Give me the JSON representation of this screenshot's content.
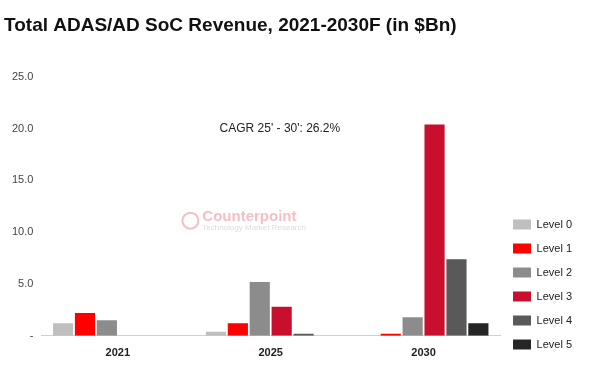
{
  "chart_data": {
    "type": "bar",
    "title": "Total ADAS/AD SoC Revenue, 2021-2030F (in $Bn)",
    "annotation": "CAGR 25' - 30': 26.2%",
    "watermark": [
      "Counterpoint",
      "Technology Market Research"
    ],
    "categories": [
      "2021",
      "2025",
      "2030"
    ],
    "series": [
      {
        "name": "Level 0",
        "color": "#bfbfbf",
        "values": [
          1.2,
          0.4,
          0
        ]
      },
      {
        "name": "Level 1",
        "color": "#ff0000",
        "values": [
          2.2,
          1.2,
          0.2
        ]
      },
      {
        "name": "Level 2",
        "color": "#8c8c8c",
        "values": [
          1.5,
          5.2,
          1.8
        ]
      },
      {
        "name": "Level 3",
        "color": "#c8102e",
        "values": [
          0,
          2.8,
          20.4
        ]
      },
      {
        "name": "Level 4",
        "color": "#595959",
        "values": [
          0,
          0.2,
          7.4
        ]
      },
      {
        "name": "Level 5",
        "color": "#262626",
        "values": [
          0,
          0,
          1.2
        ]
      }
    ],
    "ylim": [
      0,
      25
    ],
    "yticks": [
      {
        "value": 0,
        "label": "-"
      },
      {
        "value": 5,
        "label": "5.0"
      },
      {
        "value": 10,
        "label": "10.0"
      },
      {
        "value": 15,
        "label": "15.0"
      },
      {
        "value": 20,
        "label": "20.0"
      },
      {
        "value": 25,
        "label": "25.0"
      }
    ],
    "grid": false,
    "legend": "right"
  }
}
